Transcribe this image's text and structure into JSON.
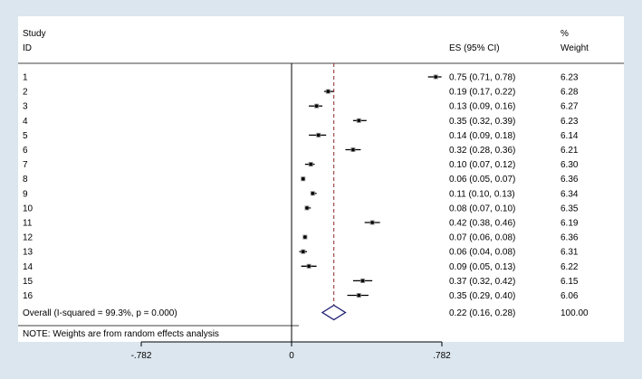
{
  "chart_data": {
    "type": "forest",
    "header": {
      "study_line1": "Study",
      "study_line2": "ID",
      "es": "ES (95% CI)",
      "weight_line1": "%",
      "weight_line2": "Weight"
    },
    "xlim": [
      -0.782,
      0.782
    ],
    "ticks": [
      {
        "value": -0.782,
        "label": "-.782"
      },
      {
        "value": 0,
        "label": "0"
      },
      {
        "value": 0.782,
        "label": ".782"
      }
    ],
    "studies": [
      {
        "id": "1",
        "es": 0.75,
        "lo": 0.71,
        "hi": 0.78,
        "ci_text": "0.75 (0.71, 0.78)",
        "weight": "6.23"
      },
      {
        "id": "2",
        "es": 0.19,
        "lo": 0.17,
        "hi": 0.22,
        "ci_text": "0.19 (0.17, 0.22)",
        "weight": "6.28"
      },
      {
        "id": "3",
        "es": 0.13,
        "lo": 0.09,
        "hi": 0.16,
        "ci_text": "0.13 (0.09, 0.16)",
        "weight": "6.27"
      },
      {
        "id": "4",
        "es": 0.35,
        "lo": 0.32,
        "hi": 0.39,
        "ci_text": "0.35 (0.32, 0.39)",
        "weight": "6.23"
      },
      {
        "id": "5",
        "es": 0.14,
        "lo": 0.09,
        "hi": 0.18,
        "ci_text": "0.14 (0.09, 0.18)",
        "weight": "6.14"
      },
      {
        "id": "6",
        "es": 0.32,
        "lo": 0.28,
        "hi": 0.36,
        "ci_text": "0.32 (0.28, 0.36)",
        "weight": "6.21"
      },
      {
        "id": "7",
        "es": 0.1,
        "lo": 0.07,
        "hi": 0.12,
        "ci_text": "0.10 (0.07, 0.12)",
        "weight": "6.30"
      },
      {
        "id": "8",
        "es": 0.06,
        "lo": 0.05,
        "hi": 0.07,
        "ci_text": "0.06 (0.05, 0.07)",
        "weight": "6.36"
      },
      {
        "id": "9",
        "es": 0.11,
        "lo": 0.1,
        "hi": 0.13,
        "ci_text": "0.11 (0.10, 0.13)",
        "weight": "6.34"
      },
      {
        "id": "10",
        "es": 0.08,
        "lo": 0.07,
        "hi": 0.1,
        "ci_text": "0.08 (0.07, 0.10)",
        "weight": "6.35"
      },
      {
        "id": "11",
        "es": 0.42,
        "lo": 0.38,
        "hi": 0.46,
        "ci_text": "0.42 (0.38, 0.46)",
        "weight": "6.19"
      },
      {
        "id": "12",
        "es": 0.07,
        "lo": 0.06,
        "hi": 0.08,
        "ci_text": "0.07 (0.06, 0.08)",
        "weight": "6.36"
      },
      {
        "id": "13",
        "es": 0.06,
        "lo": 0.04,
        "hi": 0.08,
        "ci_text": "0.06 (0.04, 0.08)",
        "weight": "6.31"
      },
      {
        "id": "14",
        "es": 0.09,
        "lo": 0.05,
        "hi": 0.13,
        "ci_text": "0.09 (0.05, 0.13)",
        "weight": "6.22"
      },
      {
        "id": "15",
        "es": 0.37,
        "lo": 0.32,
        "hi": 0.42,
        "ci_text": "0.37 (0.32, 0.42)",
        "weight": "6.15"
      },
      {
        "id": "16",
        "es": 0.35,
        "lo": 0.29,
        "hi": 0.4,
        "ci_text": "0.35 (0.29, 0.40)",
        "weight": "6.06"
      }
    ],
    "overall": {
      "label": "Overall  (I-squared = 99.3%, p = 0.000)",
      "es": 0.22,
      "lo": 0.16,
      "hi": 0.28,
      "ci_text": "0.22 (0.16, 0.28)",
      "weight": "100.00"
    },
    "note": "NOTE: Weights are from random effects analysis",
    "colors": {
      "background": "#dbe6ee",
      "panel": "#ffffff",
      "overall_line": "#8b2a2a",
      "diamond": "#1a1a6e"
    }
  }
}
